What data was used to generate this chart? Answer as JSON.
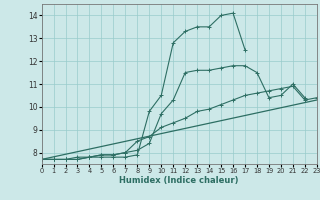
{
  "xlabel": "Humidex (Indice chaleur)",
  "ylabel": "",
  "background_color": "#cce8e8",
  "line_color": "#2d6e63",
  "grid_color": "#99cccc",
  "xlim": [
    0,
    23
  ],
  "ylim": [
    7.5,
    14.5
  ],
  "xticks": [
    0,
    1,
    2,
    3,
    4,
    5,
    6,
    7,
    8,
    9,
    10,
    11,
    12,
    13,
    14,
    15,
    16,
    17,
    18,
    19,
    20,
    21,
    22,
    23
  ],
  "yticks": [
    8,
    9,
    10,
    11,
    12,
    13,
    14
  ],
  "series": [
    {
      "x": [
        0,
        1,
        2,
        3,
        4,
        5,
        6,
        7,
        8,
        9,
        10,
        11,
        12,
        13,
        14,
        15,
        16,
        17
      ],
      "y": [
        7.7,
        7.7,
        7.7,
        7.7,
        7.8,
        7.8,
        7.8,
        7.8,
        7.9,
        9.8,
        10.5,
        12.8,
        13.3,
        13.5,
        13.5,
        14.0,
        14.1,
        12.5
      ]
    },
    {
      "x": [
        0,
        1,
        2,
        3,
        4,
        5,
        6,
        7,
        8,
        9,
        10,
        11,
        12,
        13,
        14,
        15,
        16,
        17,
        18,
        19,
        20,
        21,
        22
      ],
      "y": [
        7.7,
        7.7,
        7.7,
        7.7,
        7.8,
        7.9,
        7.9,
        8.0,
        8.1,
        8.4,
        9.7,
        10.3,
        11.5,
        11.6,
        11.6,
        11.7,
        11.8,
        11.8,
        11.5,
        10.4,
        10.5,
        11.0,
        10.4
      ]
    },
    {
      "x": [
        0,
        1,
        2,
        3,
        4,
        5,
        6,
        7,
        8,
        9,
        10,
        11,
        12,
        13,
        14,
        15,
        16,
        17,
        18,
        19,
        20,
        21,
        22,
        23
      ],
      "y": [
        7.7,
        7.7,
        7.7,
        7.8,
        7.8,
        7.9,
        7.9,
        8.0,
        8.5,
        8.7,
        9.1,
        9.3,
        9.5,
        9.8,
        9.9,
        10.1,
        10.3,
        10.5,
        10.6,
        10.7,
        10.8,
        10.9,
        10.3,
        10.4
      ]
    },
    {
      "x": [
        0,
        23
      ],
      "y": [
        7.7,
        10.3
      ]
    }
  ]
}
